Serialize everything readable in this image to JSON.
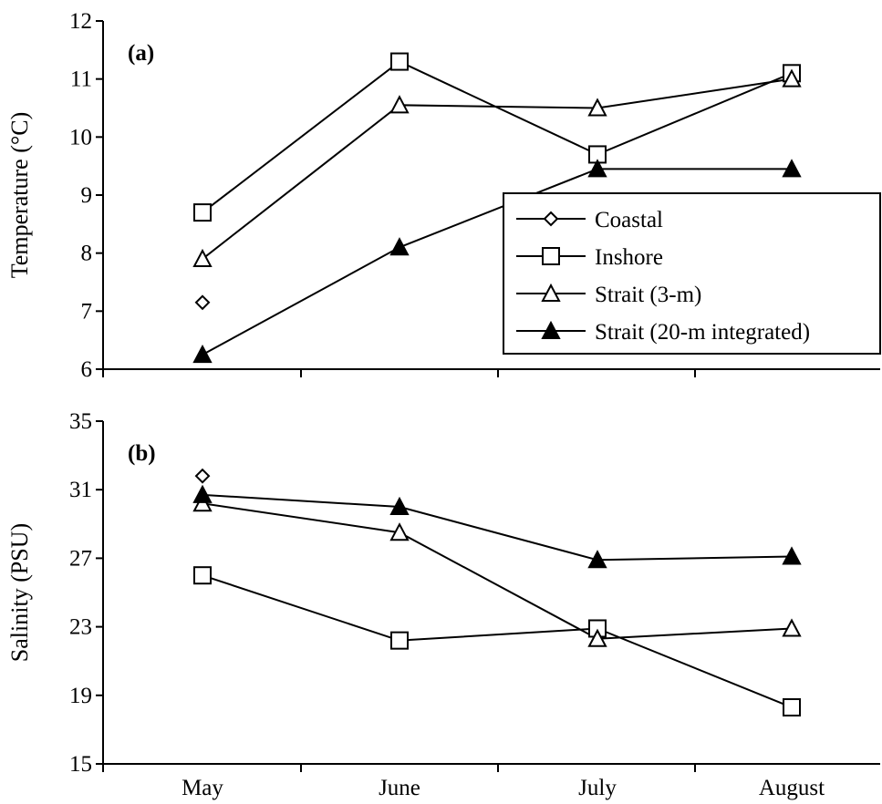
{
  "chart_data": [
    {
      "panel_label": "(a)",
      "type": "line",
      "categories": [
        "May",
        "June",
        "July",
        "August"
      ],
      "xlabel": "",
      "ylabel": "Temperature (°C)",
      "ylim": [
        6,
        12
      ],
      "yticks": [
        6,
        7,
        8,
        9,
        10,
        11,
        12
      ],
      "show_x_tick_labels": false,
      "legend": {
        "placement": "lower-right"
      },
      "series": [
        {
          "name": "Coastal",
          "marker": "diamond-open",
          "values": [
            7.15,
            null,
            null,
            null
          ]
        },
        {
          "name": "Inshore",
          "marker": "square-open",
          "values": [
            8.7,
            11.3,
            9.7,
            11.1
          ]
        },
        {
          "name": "Strait (3-m)",
          "marker": "triangle-open",
          "values": [
            7.9,
            10.55,
            10.5,
            11.0
          ]
        },
        {
          "name": "Strait (20-m integrated)",
          "marker": "triangle-filled",
          "values": [
            6.25,
            8.1,
            9.45,
            9.45
          ]
        }
      ]
    },
    {
      "panel_label": "(b)",
      "type": "line",
      "categories": [
        "May",
        "June",
        "July",
        "August"
      ],
      "xlabel": "",
      "ylabel": "Salinity (PSU)",
      "ylim": [
        15,
        35
      ],
      "yticks": [
        15,
        19,
        23,
        27,
        31,
        35
      ],
      "show_x_tick_labels": true,
      "series": [
        {
          "name": "Coastal",
          "marker": "diamond-open",
          "values": [
            31.8,
            null,
            null,
            null
          ]
        },
        {
          "name": "Inshore",
          "marker": "square-open",
          "values": [
            26.0,
            22.2,
            22.9,
            18.3
          ]
        },
        {
          "name": "Strait (3-m)",
          "marker": "triangle-open",
          "values": [
            30.2,
            28.5,
            22.3,
            22.9
          ]
        },
        {
          "name": "Strait (20-m integrated)",
          "marker": "triangle-filled",
          "values": [
            30.7,
            30.0,
            26.9,
            27.1
          ]
        }
      ]
    }
  ]
}
